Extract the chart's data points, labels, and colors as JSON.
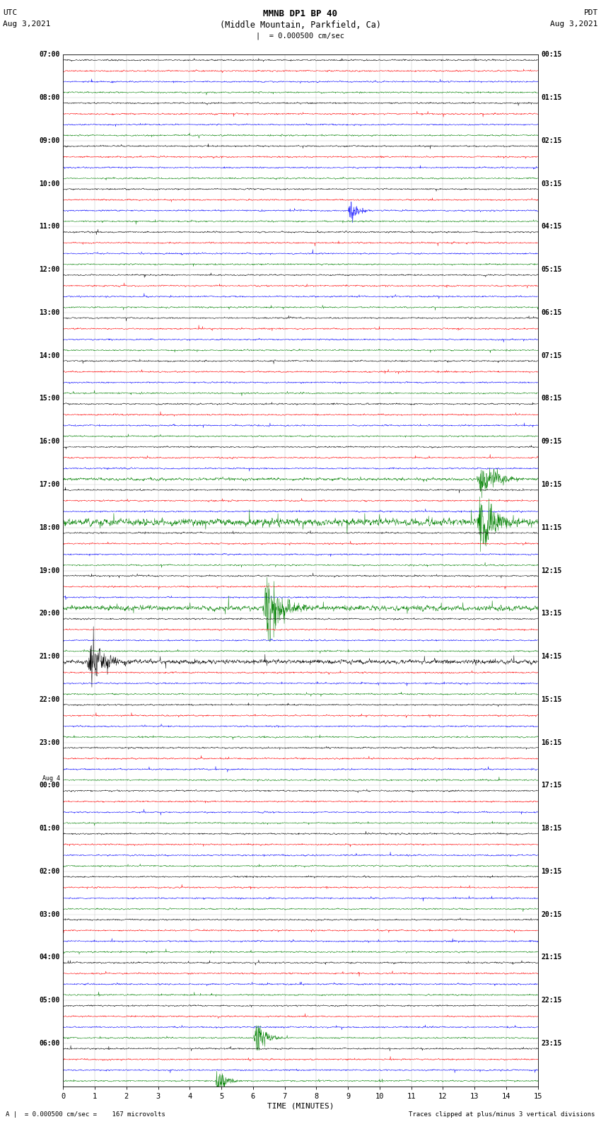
{
  "title_line1": "MMNB DP1 BP 40",
  "title_line2": "(Middle Mountain, Parkfield, Ca)",
  "scale_text": "= 0.000500 cm/sec",
  "left_date_label1": "UTC",
  "left_date_label2": "Aug 3,2021",
  "right_date_label1": "PDT",
  "right_date_label2": "Aug 3,2021",
  "bottom_label": "TIME (MINUTES)",
  "bottom_note_left": "= 0.000500 cm/sec =    167 microvolts",
  "bottom_note_right": "Traces clipped at plus/minus 3 vertical divisions",
  "trace_colors": [
    "black",
    "red",
    "blue",
    "green"
  ],
  "fig_width": 8.5,
  "fig_height": 16.13,
  "total_rows": 24,
  "traces_per_row": 4,
  "left_time_labels": [
    "07:00",
    "08:00",
    "09:00",
    "10:00",
    "11:00",
    "12:00",
    "13:00",
    "14:00",
    "15:00",
    "16:00",
    "17:00",
    "18:00",
    "19:00",
    "20:00",
    "21:00",
    "22:00",
    "23:00",
    "Aug 4\n00:00",
    "01:00",
    "02:00",
    "03:00",
    "04:00",
    "05:00",
    "06:00"
  ],
  "right_time_labels": [
    "00:15",
    "01:15",
    "02:15",
    "03:15",
    "04:15",
    "05:15",
    "06:15",
    "07:15",
    "08:15",
    "09:15",
    "10:15",
    "11:15",
    "12:15",
    "13:15",
    "14:15",
    "15:15",
    "16:15",
    "17:15",
    "18:15",
    "19:15",
    "20:15",
    "21:15",
    "22:15",
    "23:15"
  ],
  "earthquake_events": {
    "10_3": [
      0.87,
      0.1,
      5.0
    ],
    "9_3": [
      0.87,
      0.1,
      3.0
    ],
    "12_3": [
      0.42,
      0.12,
      4.0
    ],
    "14_0": [
      0.05,
      0.1,
      4.0
    ],
    "22_3": [
      0.4,
      0.07,
      2.5
    ],
    "23_3": [
      0.32,
      0.06,
      2.0
    ],
    "3_2": [
      0.6,
      0.05,
      2.0
    ]
  },
  "noisy_rows": {
    "9_3": 2.0,
    "10_3": 5.0,
    "12_3": 3.5,
    "14_0": 3.0
  }
}
